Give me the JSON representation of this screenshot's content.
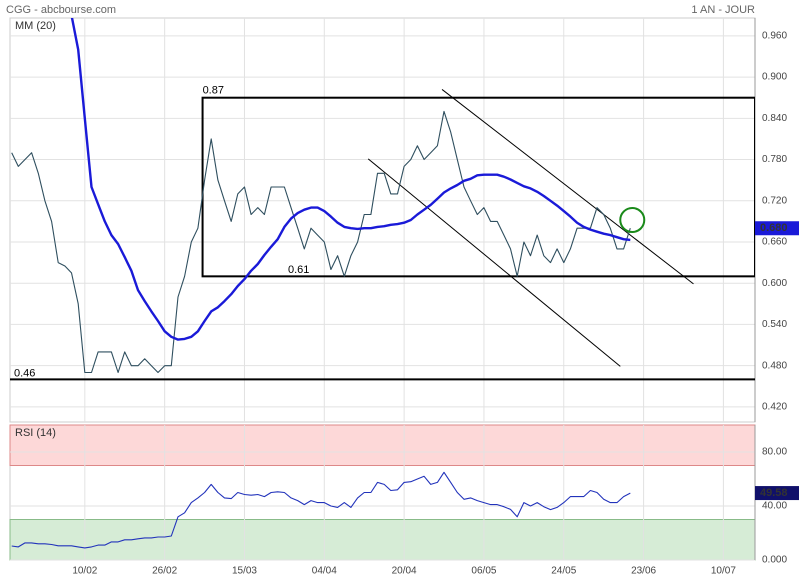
{
  "chart_data": [
    {
      "type": "line",
      "title": "CGG - abcbourse.com",
      "subtitle": "1 AN - JOUR",
      "ylim": [
        0.398,
        0.986
      ],
      "yticks": [
        {
          "value": 0.42,
          "label": "0.420"
        },
        {
          "value": 0.48,
          "label": "0.480"
        },
        {
          "value": 0.54,
          "label": "0.540"
        },
        {
          "value": 0.6,
          "label": "0.600"
        },
        {
          "value": 0.66,
          "label": "0.660"
        },
        {
          "value": 0.72,
          "label": "0.720"
        },
        {
          "value": 0.78,
          "label": "0.780"
        },
        {
          "value": 0.84,
          "label": "0.840"
        },
        {
          "value": 0.9,
          "label": "0.900"
        },
        {
          "value": 0.96,
          "label": "0.960"
        }
      ],
      "grid": true,
      "series": [
        {
          "color": "#2f4f5f",
          "last_label": "0.680",
          "values": [
            0.79,
            0.77,
            0.78,
            0.79,
            0.76,
            0.72,
            0.69,
            0.63,
            0.625,
            0.615,
            0.57,
            0.47,
            0.47,
            0.5,
            0.5,
            0.5,
            0.47,
            0.5,
            0.48,
            0.48,
            0.49,
            0.48,
            0.47,
            0.48,
            0.48,
            0.58,
            0.61,
            0.66,
            0.68,
            0.75,
            0.81,
            0.75,
            0.72,
            0.69,
            0.73,
            0.74,
            0.7,
            0.71,
            0.7,
            0.74,
            0.74,
            0.74,
            0.71,
            0.68,
            0.65,
            0.68,
            0.67,
            0.66,
            0.62,
            0.64,
            0.61,
            0.64,
            0.66,
            0.7,
            0.7,
            0.76,
            0.76,
            0.73,
            0.73,
            0.77,
            0.78,
            0.8,
            0.78,
            0.79,
            0.8,
            0.85,
            0.82,
            0.78,
            0.74,
            0.72,
            0.7,
            0.71,
            0.69,
            0.69,
            0.67,
            0.65,
            0.61,
            0.66,
            0.64,
            0.67,
            0.64,
            0.63,
            0.65,
            0.63,
            0.65,
            0.68,
            0.68,
            0.68,
            0.71,
            0.7,
            0.68,
            0.65,
            0.65,
            0.68,
            null,
            null,
            null,
            null,
            null,
            null,
            null,
            null,
            null,
            null,
            null,
            null,
            null,
            null,
            null,
            null,
            null,
            null
          ]
        },
        {
          "name": "MM (20)",
          "color": "#1a1ad8",
          "values": [
            null,
            null,
            null,
            null,
            null,
            null,
            null,
            null,
            null,
            0.99,
            0.94,
            0.84,
            0.74,
            0.715,
            0.69,
            0.67,
            0.657,
            0.638,
            0.618,
            0.59,
            0.574,
            0.559,
            0.545,
            0.53,
            0.522,
            0.518,
            0.519,
            0.522,
            0.53,
            0.545,
            0.559,
            0.565,
            0.574,
            0.584,
            0.596,
            0.606,
            0.618,
            0.628,
            0.641,
            0.653,
            0.664,
            0.682,
            0.694,
            0.702,
            0.707,
            0.71,
            0.71,
            0.705,
            0.697,
            0.688,
            0.682,
            0.68,
            0.679,
            0.68,
            0.68,
            0.682,
            0.683,
            0.685,
            0.686,
            0.688,
            0.692,
            0.7,
            0.707,
            0.714,
            0.723,
            0.732,
            0.738,
            0.743,
            0.749,
            0.752,
            0.757,
            0.758,
            0.758,
            0.758,
            0.755,
            0.751,
            0.746,
            0.741,
            0.738,
            0.733,
            0.727,
            0.72,
            0.713,
            0.705,
            0.697,
            0.688,
            0.682,
            0.678,
            0.675,
            0.672,
            0.67,
            0.667,
            0.664,
            0.663,
            null,
            null,
            null,
            null,
            null,
            null,
            null,
            null,
            null,
            null,
            null,
            null,
            null,
            null,
            null,
            null,
            null,
            null
          ]
        }
      ],
      "levels": [
        0.87,
        0.61,
        0.46
      ],
      "box_start": 28.7,
      "trendlines": [
        {
          "x": [
            64.7,
            102.5
          ],
          "y": [
            0.882,
            0.599
          ]
        },
        {
          "x": [
            53.6,
            91.5
          ],
          "y": [
            0.781,
            0.479
          ]
        }
      ],
      "marker": {
        "x": 93.3,
        "y": 0.692,
        "color": "#1a8a1a"
      }
    },
    {
      "type": "line",
      "ylim": [
        0,
        100
      ],
      "yticks": [
        {
          "value": 0,
          "label": "0.000"
        },
        {
          "value": 40,
          "label": "40.00"
        },
        {
          "value": 80,
          "label": "80.00"
        }
      ],
      "grid": true,
      "zones": [
        {
          "range": [
            70,
            100
          ],
          "color": "#fdd8d8"
        },
        {
          "range": [
            0,
            30
          ],
          "color": "#d6ecd6"
        }
      ],
      "categories": [
        null,
        null,
        null,
        null,
        null,
        null,
        null,
        null,
        null,
        null,
        null,
        "10/02",
        null,
        null,
        null,
        null,
        null,
        null,
        null,
        null,
        null,
        null,
        null,
        "26/02",
        null,
        null,
        null,
        null,
        null,
        null,
        null,
        null,
        null,
        null,
        null,
        "15/03",
        null,
        null,
        null,
        null,
        null,
        null,
        null,
        null,
        null,
        null,
        null,
        "04/04",
        null,
        null,
        null,
        null,
        null,
        null,
        null,
        null,
        null,
        null,
        null,
        "20/04",
        null,
        null,
        null,
        null,
        null,
        null,
        null,
        null,
        null,
        null,
        null,
        "06/05",
        null,
        null,
        null,
        null,
        null,
        null,
        null,
        null,
        null,
        null,
        null,
        "24/05",
        null,
        null,
        null,
        null,
        null,
        null,
        null,
        null,
        null,
        null,
        null,
        "23/06",
        null,
        null,
        null,
        null,
        null,
        null,
        null,
        null,
        null,
        null,
        null,
        "10/07",
        null,
        null,
        null,
        null
      ],
      "series": [
        {
          "name": "RSI (14)",
          "color": "#2233bb",
          "values": [
            10.4,
            9.7,
            12.7,
            12.7,
            12,
            12,
            11.5,
            10.5,
            10.5,
            10.5,
            9.7,
            9,
            9.7,
            11,
            11,
            13.4,
            13.4,
            15,
            15,
            15.7,
            16.4,
            16.4,
            17,
            17,
            17.8,
            32,
            35,
            42.5,
            46,
            50,
            56,
            50,
            46,
            45.5,
            50,
            48.5,
            48,
            48.5,
            47,
            50,
            50.5,
            50,
            46,
            44,
            41,
            44,
            42.5,
            42.5,
            40,
            39,
            42.5,
            39,
            46,
            50,
            50,
            57.5,
            56,
            51.5,
            52,
            57.5,
            58,
            60,
            62,
            56,
            57.5,
            65,
            57.5,
            50,
            45,
            46,
            44,
            42.5,
            41,
            41,
            39.5,
            37.5,
            32,
            42.5,
            40,
            42.5,
            39.5,
            37.3,
            39,
            42.5,
            47,
            47,
            47,
            51.5,
            50,
            45,
            42.5,
            42.5,
            47,
            49.58,
            null,
            null,
            null,
            null,
            null,
            null,
            null,
            null,
            null,
            null,
            null,
            null,
            null,
            null,
            null,
            null,
            null,
            null
          ]
        }
      ]
    }
  ]
}
